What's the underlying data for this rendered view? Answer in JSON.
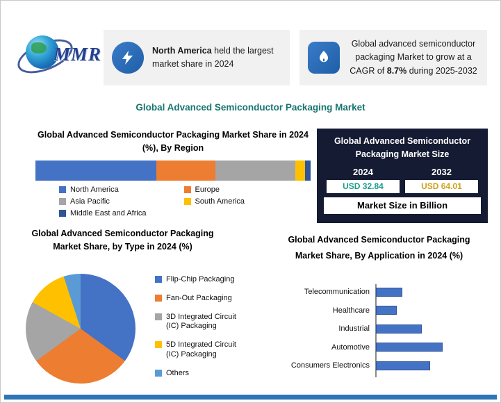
{
  "logo": {
    "text": "MMR"
  },
  "highlights": [
    {
      "pre": "",
      "bold": "North America",
      "post": " held the largest market share in 2024"
    },
    {
      "pre": "Global advanced semiconductor packaging Market to grow at a CAGR of ",
      "bold": "8.7%",
      "post": " during 2025-2032"
    }
  ],
  "main_title": "Global Advanced Semiconductor Packaging Market",
  "market_size": {
    "title": "Global Advanced Semiconductor Packaging Market Size",
    "col1": {
      "year": "2024",
      "value": "USD 32.84"
    },
    "col2": {
      "year": "2032",
      "value": "USD 64.01"
    },
    "caption": "Market Size in Billion"
  },
  "colors": {
    "accent_teal": "#17756f",
    "panel_navy": "#151b33",
    "value_2024": "#1a9e8e",
    "value_2032": "#cfa119",
    "bottom_bar_blue": "#2e75b6",
    "icon_blue": "#1f5fa8"
  },
  "chart_data": [
    {
      "type": "bar",
      "subtype": "stacked-horizontal",
      "title": "Global Advanced Semiconductor Packaging Market Share in 2024 (%), By Region",
      "categories": [
        "North America",
        "Europe",
        "Asia Pacific",
        "South America",
        "Middle East and Africa"
      ],
      "values": [
        44,
        21.5,
        29,
        3.5,
        2
      ],
      "unit": "%",
      "colors": [
        "#4472c4",
        "#ed7d31",
        "#a5a5a5",
        "#ffc000",
        "#2f5597"
      ],
      "legend_position": "bottom",
      "grid": false
    },
    {
      "type": "pie",
      "title": "Global Advanced Semiconductor Packaging Market Share, by Type in 2024 (%)",
      "categories": [
        "Flip-Chip Packaging",
        "Fan-Out Packaging",
        "3D Integrated Circuit (IC) Packaging",
        "5D Integrated Circuit (IC) Packaging",
        "Others"
      ],
      "values": [
        35,
        30,
        18,
        12,
        5
      ],
      "unit": "%",
      "colors": [
        "#4472c4",
        "#ed7d31",
        "#a5a5a5",
        "#ffc000",
        "#5b9bd5"
      ],
      "legend_position": "right",
      "start_angle_deg": 0
    },
    {
      "type": "bar",
      "subtype": "horizontal",
      "title": "Global Advanced Semiconductor Packaging Market Share, By Application in 2024 (%)",
      "categories": [
        "Telecommunication",
        "Healthcare",
        "Industrial",
        "Automotive",
        "Consumers Electronics"
      ],
      "values": [
        19,
        15,
        33,
        48,
        39
      ],
      "unit": "%",
      "xmax": 50,
      "color": "#4472c4",
      "grid": false
    }
  ]
}
